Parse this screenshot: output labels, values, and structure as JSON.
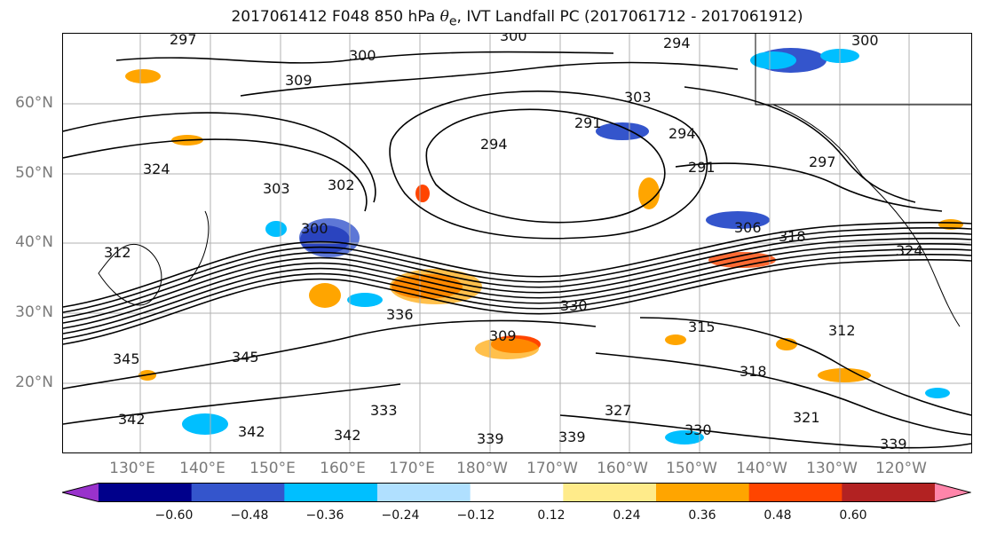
{
  "title_prefix": "2017061412 F048 850 hPa ",
  "title_symbol": "θ",
  "title_sub": "e",
  "title_suffix": ", IVT Landfall PC (2017061712 - 2017061912)",
  "map": {
    "lat_labels": [
      "60°N",
      "50°N",
      "40°N",
      "30°N",
      "20°N"
    ],
    "lon_labels": [
      "130°E",
      "140°E",
      "150°E",
      "160°E",
      "170°E",
      "180°W",
      "170°W",
      "160°W",
      "150°W",
      "140°W",
      "130°W",
      "120°W"
    ],
    "contour_labels": [
      "300",
      "294",
      "300",
      "309",
      "300",
      "303",
      "294",
      "291",
      "294",
      "297",
      "303",
      "302",
      "300",
      "306",
      "318",
      "324",
      "324",
      "336",
      "330",
      "315",
      "312",
      "318",
      "345",
      "345",
      "342",
      "342",
      "333",
      "339",
      "339",
      "327",
      "321",
      "339",
      "342",
      "330",
      "309",
      "297",
      "312",
      "291"
    ],
    "colors": {
      "land_outline": "#000000",
      "contour": "#000000",
      "grid": "#b0b0b0"
    }
  },
  "colorbar": {
    "tick_labels": [
      "−0.60",
      "−0.48",
      "−0.36",
      "−0.24",
      "−0.12",
      "0.12",
      "0.24",
      "0.36",
      "0.48",
      "0.60"
    ],
    "colors": [
      "#9932cc",
      "#00008b",
      "#3455cc",
      "#00bfff",
      "#b0e0ff",
      "#ffffff",
      "#ffeb8a",
      "#ffa500",
      "#ff4500",
      "#b22222",
      "#ff85aa"
    ]
  }
}
